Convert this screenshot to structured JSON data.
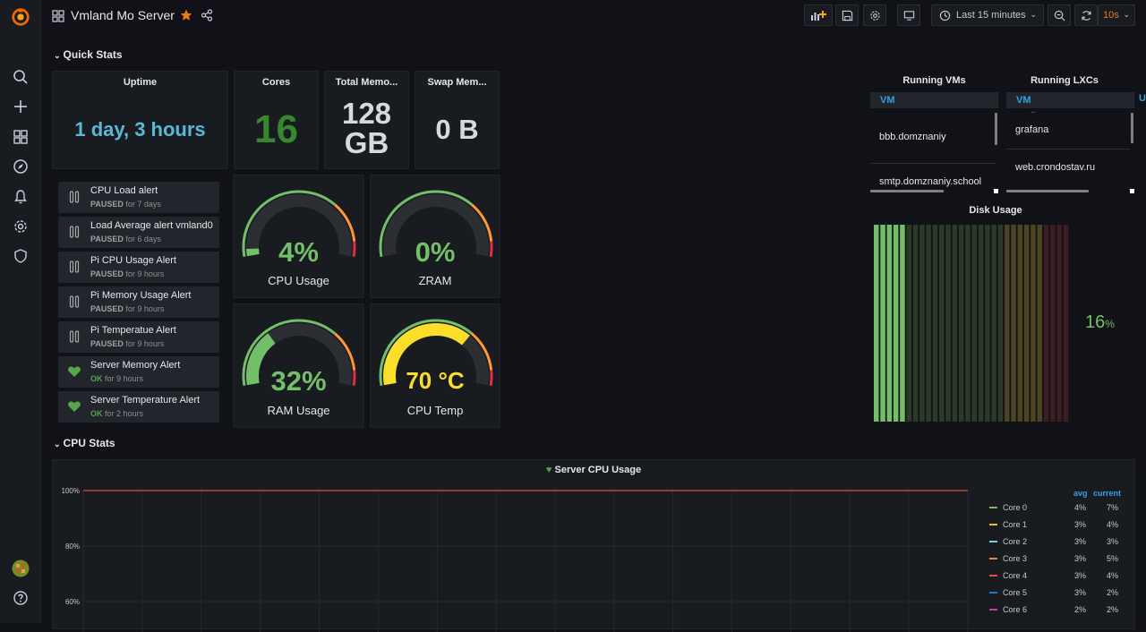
{
  "app": {
    "dashboard_title": "Vmland Mo Server",
    "time_range": "Last 15 minutes",
    "refresh": "10s"
  },
  "sidebar": {
    "icons": [
      "grafana-logo-icon",
      "search-icon",
      "plus-icon",
      "dashboards-icon",
      "explore-icon",
      "alerting-bell-icon",
      "gear-icon",
      "shield-icon",
      "user-avatar-icon",
      "help-icon"
    ]
  },
  "rows": {
    "quick_stats": "Quick Stats",
    "cpu_stats": "CPU Stats"
  },
  "stats": {
    "uptime": {
      "title": "Uptime",
      "value": "1 day, 3 hours",
      "color": "#5ab8d6"
    },
    "cores": {
      "title": "Cores",
      "value": "16",
      "color": "#37872d"
    },
    "total_memory": {
      "title": "Total Memo...",
      "value_line1": "128",
      "value_line2": "GB",
      "color": "#d8d9da"
    },
    "swap_memory": {
      "title": "Swap Mem...",
      "value": "0 B",
      "color": "#d8d9da"
    }
  },
  "alerts": [
    {
      "name": "CPU Load alert",
      "state": "PAUSED",
      "duration": "for 7 days",
      "icon": "pause-icon"
    },
    {
      "name": "Load Average alert vmland0",
      "state": "PAUSED",
      "duration": "for 6 days",
      "icon": "pause-icon"
    },
    {
      "name": "Pi CPU Usage Alert",
      "state": "PAUSED",
      "duration": "for 9 hours",
      "icon": "pause-icon"
    },
    {
      "name": "Pi Memory Usage Alert",
      "state": "PAUSED",
      "duration": "for 9 hours",
      "icon": "pause-icon"
    },
    {
      "name": "Pi Temperatue Alert",
      "state": "PAUSED",
      "duration": "for 9 hours",
      "icon": "pause-icon"
    },
    {
      "name": "Server Memory Alert",
      "state": "OK",
      "duration": "for 9 hours",
      "icon": "heart-icon"
    },
    {
      "name": "Server Temperature Alert",
      "state": "OK",
      "duration": "for 2 hours",
      "icon": "heart-icon"
    }
  ],
  "gauges": {
    "cpu": {
      "label": "CPU Usage",
      "value": "4%",
      "percent": 4,
      "color": "#73bf69"
    },
    "zram": {
      "label": "ZRAM",
      "value": "0%",
      "percent": 0,
      "color": "#73bf69"
    },
    "ram": {
      "label": "RAM Usage",
      "value": "32%",
      "percent": 32,
      "color": "#73bf69"
    },
    "temp": {
      "label": "CPU Temp",
      "value": "70 °C",
      "percent": 70,
      "color": "#fade2a"
    }
  },
  "tables": {
    "vms": {
      "title": "Running VMs",
      "column": "VM",
      "rows": [
        "bbb.domznaniy",
        "smtp.domznaniy.school"
      ]
    },
    "lxcs": {
      "title": "Running LXCs",
      "column": "VM",
      "rows": [
        "grafana",
        "web.crondostav.ru"
      ]
    }
  },
  "disk_usage": {
    "title": "Disk Usage",
    "value": "16",
    "unit": "%",
    "percent": 16
  },
  "cpu_chart": {
    "title": "Server CPU Usage",
    "legend_headers": {
      "avg": "avg",
      "current": "current"
    },
    "y_ticks": [
      "100%",
      "80%",
      "60%"
    ],
    "series": [
      {
        "name": "Core 0",
        "avg": "4%",
        "current": "7%",
        "color": "#7eb26d"
      },
      {
        "name": "Core 1",
        "avg": "3%",
        "current": "4%",
        "color": "#eab839"
      },
      {
        "name": "Core 2",
        "avg": "3%",
        "current": "3%",
        "color": "#6ed0e0"
      },
      {
        "name": "Core 3",
        "avg": "3%",
        "current": "5%",
        "color": "#ef843c"
      },
      {
        "name": "Core 4",
        "avg": "3%",
        "current": "4%",
        "color": "#e24d42"
      },
      {
        "name": "Core 5",
        "avg": "3%",
        "current": "2%",
        "color": "#1f78c1"
      },
      {
        "name": "Core 6",
        "avg": "2%",
        "current": "2%",
        "color": "#ba43a9"
      }
    ]
  }
}
